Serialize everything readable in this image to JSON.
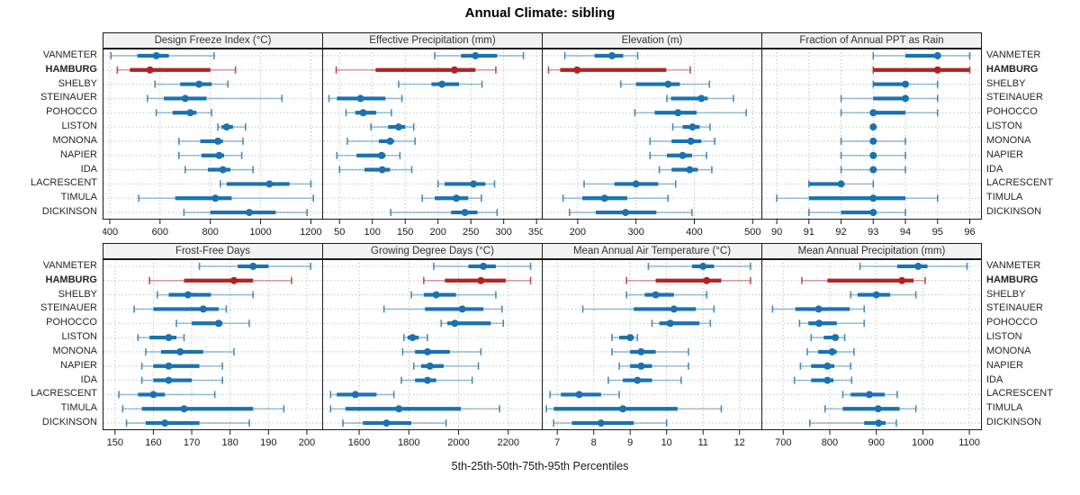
{
  "title": "Annual Climate: sibling",
  "footer": "5th-25th-50th-75th-95th Percentiles",
  "highlight_station": "HAMBURG",
  "colors": {
    "series": "#1a72b0",
    "highlight": "#b22222",
    "header_bg": "#f2f2f2",
    "panel_border": "#1a1a1a",
    "grid": "#c4c4c4",
    "text": "#262626"
  },
  "chart_data": {
    "type": "dot-interval",
    "note": "Each row shows 5th-25th-50th-75th-95th percentiles; thin line 5-95, thick bar 25-75, dot 50",
    "percentiles": [
      5,
      25,
      50,
      75,
      95
    ],
    "stations": [
      "VANMETER",
      "HAMBURG",
      "SHELBY",
      "STEINAUER",
      "POHOCCO",
      "LISTON",
      "MONONA",
      "NAPIER",
      "IDA",
      "LACRESCENT",
      "TIMULA",
      "DICKINSON"
    ],
    "panels": [
      {
        "title": "Design Freeze Index (°C)",
        "min": 375,
        "max": 1245,
        "ticks": [
          400,
          600,
          800,
          1000,
          1200
        ],
        "values": [
          [
            405,
            510,
            585,
            635,
            815
          ],
          [
            430,
            480,
            560,
            800,
            900
          ],
          [
            580,
            680,
            755,
            805,
            870
          ],
          [
            550,
            615,
            700,
            785,
            1085
          ],
          [
            585,
            650,
            720,
            745,
            805
          ],
          [
            830,
            845,
            865,
            890,
            940
          ],
          [
            675,
            760,
            830,
            850,
            930
          ],
          [
            675,
            765,
            835,
            855,
            925
          ],
          [
            700,
            790,
            850,
            880,
            970
          ],
          [
            840,
            865,
            1035,
            1115,
            1200
          ],
          [
            515,
            660,
            820,
            885,
            1210
          ],
          [
            695,
            800,
            955,
            1060,
            1185
          ]
        ]
      },
      {
        "title": "Effective Precipitation (mm)",
        "min": 25,
        "max": 358,
        "ticks": [
          50,
          100,
          150,
          200,
          250,
          300,
          350
        ],
        "values": [
          [
            195,
            235,
            257,
            290,
            330
          ],
          [
            45,
            105,
            225,
            257,
            288
          ],
          [
            140,
            190,
            206,
            232,
            267
          ],
          [
            34,
            46,
            82,
            120,
            145
          ],
          [
            60,
            74,
            86,
            106,
            129
          ],
          [
            98,
            124,
            140,
            150,
            163
          ],
          [
            62,
            110,
            127,
            133,
            165
          ],
          [
            46,
            76,
            114,
            120,
            142
          ],
          [
            50,
            88,
            115,
            127,
            160
          ],
          [
            200,
            210,
            254,
            272,
            286
          ],
          [
            176,
            195,
            228,
            246,
            266
          ],
          [
            128,
            220,
            241,
            260,
            290
          ]
        ]
      },
      {
        "title": "Elevation (m)",
        "min": 140,
        "max": 515,
        "ticks": [
          200,
          300,
          400,
          500
        ],
        "values": [
          [
            178,
            229,
            259,
            278,
            303
          ],
          [
            150,
            170,
            199,
            352,
            393
          ],
          [
            274,
            300,
            355,
            375,
            426
          ],
          [
            353,
            360,
            412,
            423,
            467
          ],
          [
            298,
            332,
            372,
            404,
            489
          ],
          [
            363,
            380,
            397,
            409,
            427
          ],
          [
            324,
            361,
            394,
            412,
            435
          ],
          [
            324,
            353,
            380,
            396,
            421
          ],
          [
            340,
            361,
            392,
            406,
            430
          ],
          [
            211,
            263,
            300,
            338,
            368
          ],
          [
            175,
            208,
            246,
            285,
            355
          ],
          [
            186,
            231,
            282,
            335,
            396
          ]
        ]
      },
      {
        "title": "Fraction of Annual PPT as Rain",
        "min": 89.55,
        "max": 96.35,
        "ticks": [
          90,
          91,
          92,
          93,
          94,
          95,
          96
        ],
        "values": [
          [
            93,
            94,
            95,
            95,
            96
          ],
          [
            93,
            93,
            95,
            96,
            96
          ],
          [
            93,
            93,
            94,
            94,
            95
          ],
          [
            92,
            93,
            94,
            94,
            95
          ],
          [
            92,
            93,
            93,
            94,
            95
          ],
          [
            93,
            93,
            93,
            93,
            93
          ],
          [
            92,
            93,
            93,
            93,
            94
          ],
          [
            92,
            93,
            93,
            93,
            94
          ],
          [
            92,
            93,
            93,
            93,
            94
          ],
          [
            91,
            91,
            92,
            92,
            93
          ],
          [
            90,
            91,
            93,
            94,
            95
          ],
          [
            91,
            92,
            93,
            93,
            94
          ]
        ]
      },
      {
        "title": "Frost-Free Days",
        "min": 147,
        "max": 204,
        "ticks": [
          150,
          160,
          170,
          180,
          190,
          200
        ],
        "values": [
          [
            172,
            182,
            186,
            190,
            201
          ],
          [
            159,
            168,
            181,
            186,
            196
          ],
          [
            161,
            164,
            169,
            175,
            186
          ],
          [
            155,
            160,
            173,
            177,
            179
          ],
          [
            166,
            170,
            177,
            178,
            185
          ],
          [
            156,
            159,
            164,
            166,
            168
          ],
          [
            158,
            162,
            167,
            173,
            181
          ],
          [
            157,
            160,
            164,
            172,
            178
          ],
          [
            157,
            160,
            164,
            170,
            178
          ],
          [
            151,
            156,
            160,
            163,
            176
          ],
          [
            152,
            157,
            168,
            186,
            194
          ],
          [
            153,
            158,
            163,
            172,
            185
          ]
        ]
      },
      {
        "title": "Growing Degree Days (°C)",
        "min": 1455,
        "max": 2335,
        "ticks": [
          1600,
          1800,
          2000,
          2200
        ],
        "values": [
          [
            1900,
            2040,
            2100,
            2150,
            2290
          ],
          [
            1860,
            1945,
            2090,
            2190,
            2290
          ],
          [
            1810,
            1860,
            1910,
            1990,
            2150
          ],
          [
            1700,
            1865,
            2015,
            2100,
            2175
          ],
          [
            1930,
            1955,
            1985,
            2130,
            2180
          ],
          [
            1780,
            1795,
            1815,
            1840,
            1875
          ],
          [
            1775,
            1825,
            1875,
            1965,
            2090
          ],
          [
            1820,
            1850,
            1885,
            1940,
            2080
          ],
          [
            1770,
            1825,
            1875,
            1910,
            2055
          ],
          [
            1485,
            1510,
            1585,
            1670,
            1740
          ],
          [
            1485,
            1545,
            1760,
            2010,
            2165
          ],
          [
            1535,
            1615,
            1710,
            1810,
            1950
          ]
        ]
      },
      {
        "title": "Mean Annual Air Temperature (°C)",
        "min": 6.6,
        "max": 12.6,
        "ticks": [
          7,
          8,
          9,
          10,
          11,
          12
        ],
        "values": [
          [
            9.5,
            10.7,
            11.0,
            11.3,
            12.3
          ],
          [
            8.9,
            9.7,
            11.1,
            11.5,
            12.3
          ],
          [
            8.9,
            9.4,
            9.7,
            10.2,
            11.1
          ],
          [
            7.7,
            9.1,
            10.2,
            10.8,
            11.3
          ],
          [
            9.6,
            9.8,
            10.1,
            10.9,
            11.2
          ],
          [
            8.5,
            8.7,
            9.0,
            9.1,
            9.2
          ],
          [
            8.5,
            9.0,
            9.3,
            9.7,
            10.6
          ],
          [
            8.7,
            9.0,
            9.3,
            9.6,
            10.6
          ],
          [
            8.4,
            8.8,
            9.2,
            9.6,
            10.4
          ],
          [
            6.8,
            7.1,
            7.6,
            8.2,
            8.7
          ],
          [
            6.7,
            6.9,
            8.8,
            10.3,
            11.5
          ],
          [
            6.9,
            7.4,
            8.2,
            9.1,
            10.0
          ]
        ]
      },
      {
        "title": "Mean Annual Precipitation (mm)",
        "min": 655,
        "max": 1125,
        "ticks": [
          700,
          800,
          900,
          1000,
          1100
        ],
        "values": [
          [
            865,
            945,
            990,
            1010,
            1095
          ],
          [
            740,
            795,
            955,
            980,
            1005
          ],
          [
            845,
            860,
            900,
            930,
            985
          ],
          [
            677,
            726,
            776,
            843,
            874
          ],
          [
            735,
            754,
            777,
            815,
            874
          ],
          [
            760,
            787,
            812,
            818,
            832
          ],
          [
            752,
            775,
            805,
            815,
            852
          ],
          [
            737,
            760,
            795,
            810,
            845
          ],
          [
            724,
            760,
            795,
            808,
            847
          ],
          [
            828,
            845,
            885,
            918,
            945
          ],
          [
            790,
            828,
            904,
            950,
            985
          ],
          [
            757,
            874,
            905,
            920,
            943
          ]
        ]
      }
    ]
  }
}
